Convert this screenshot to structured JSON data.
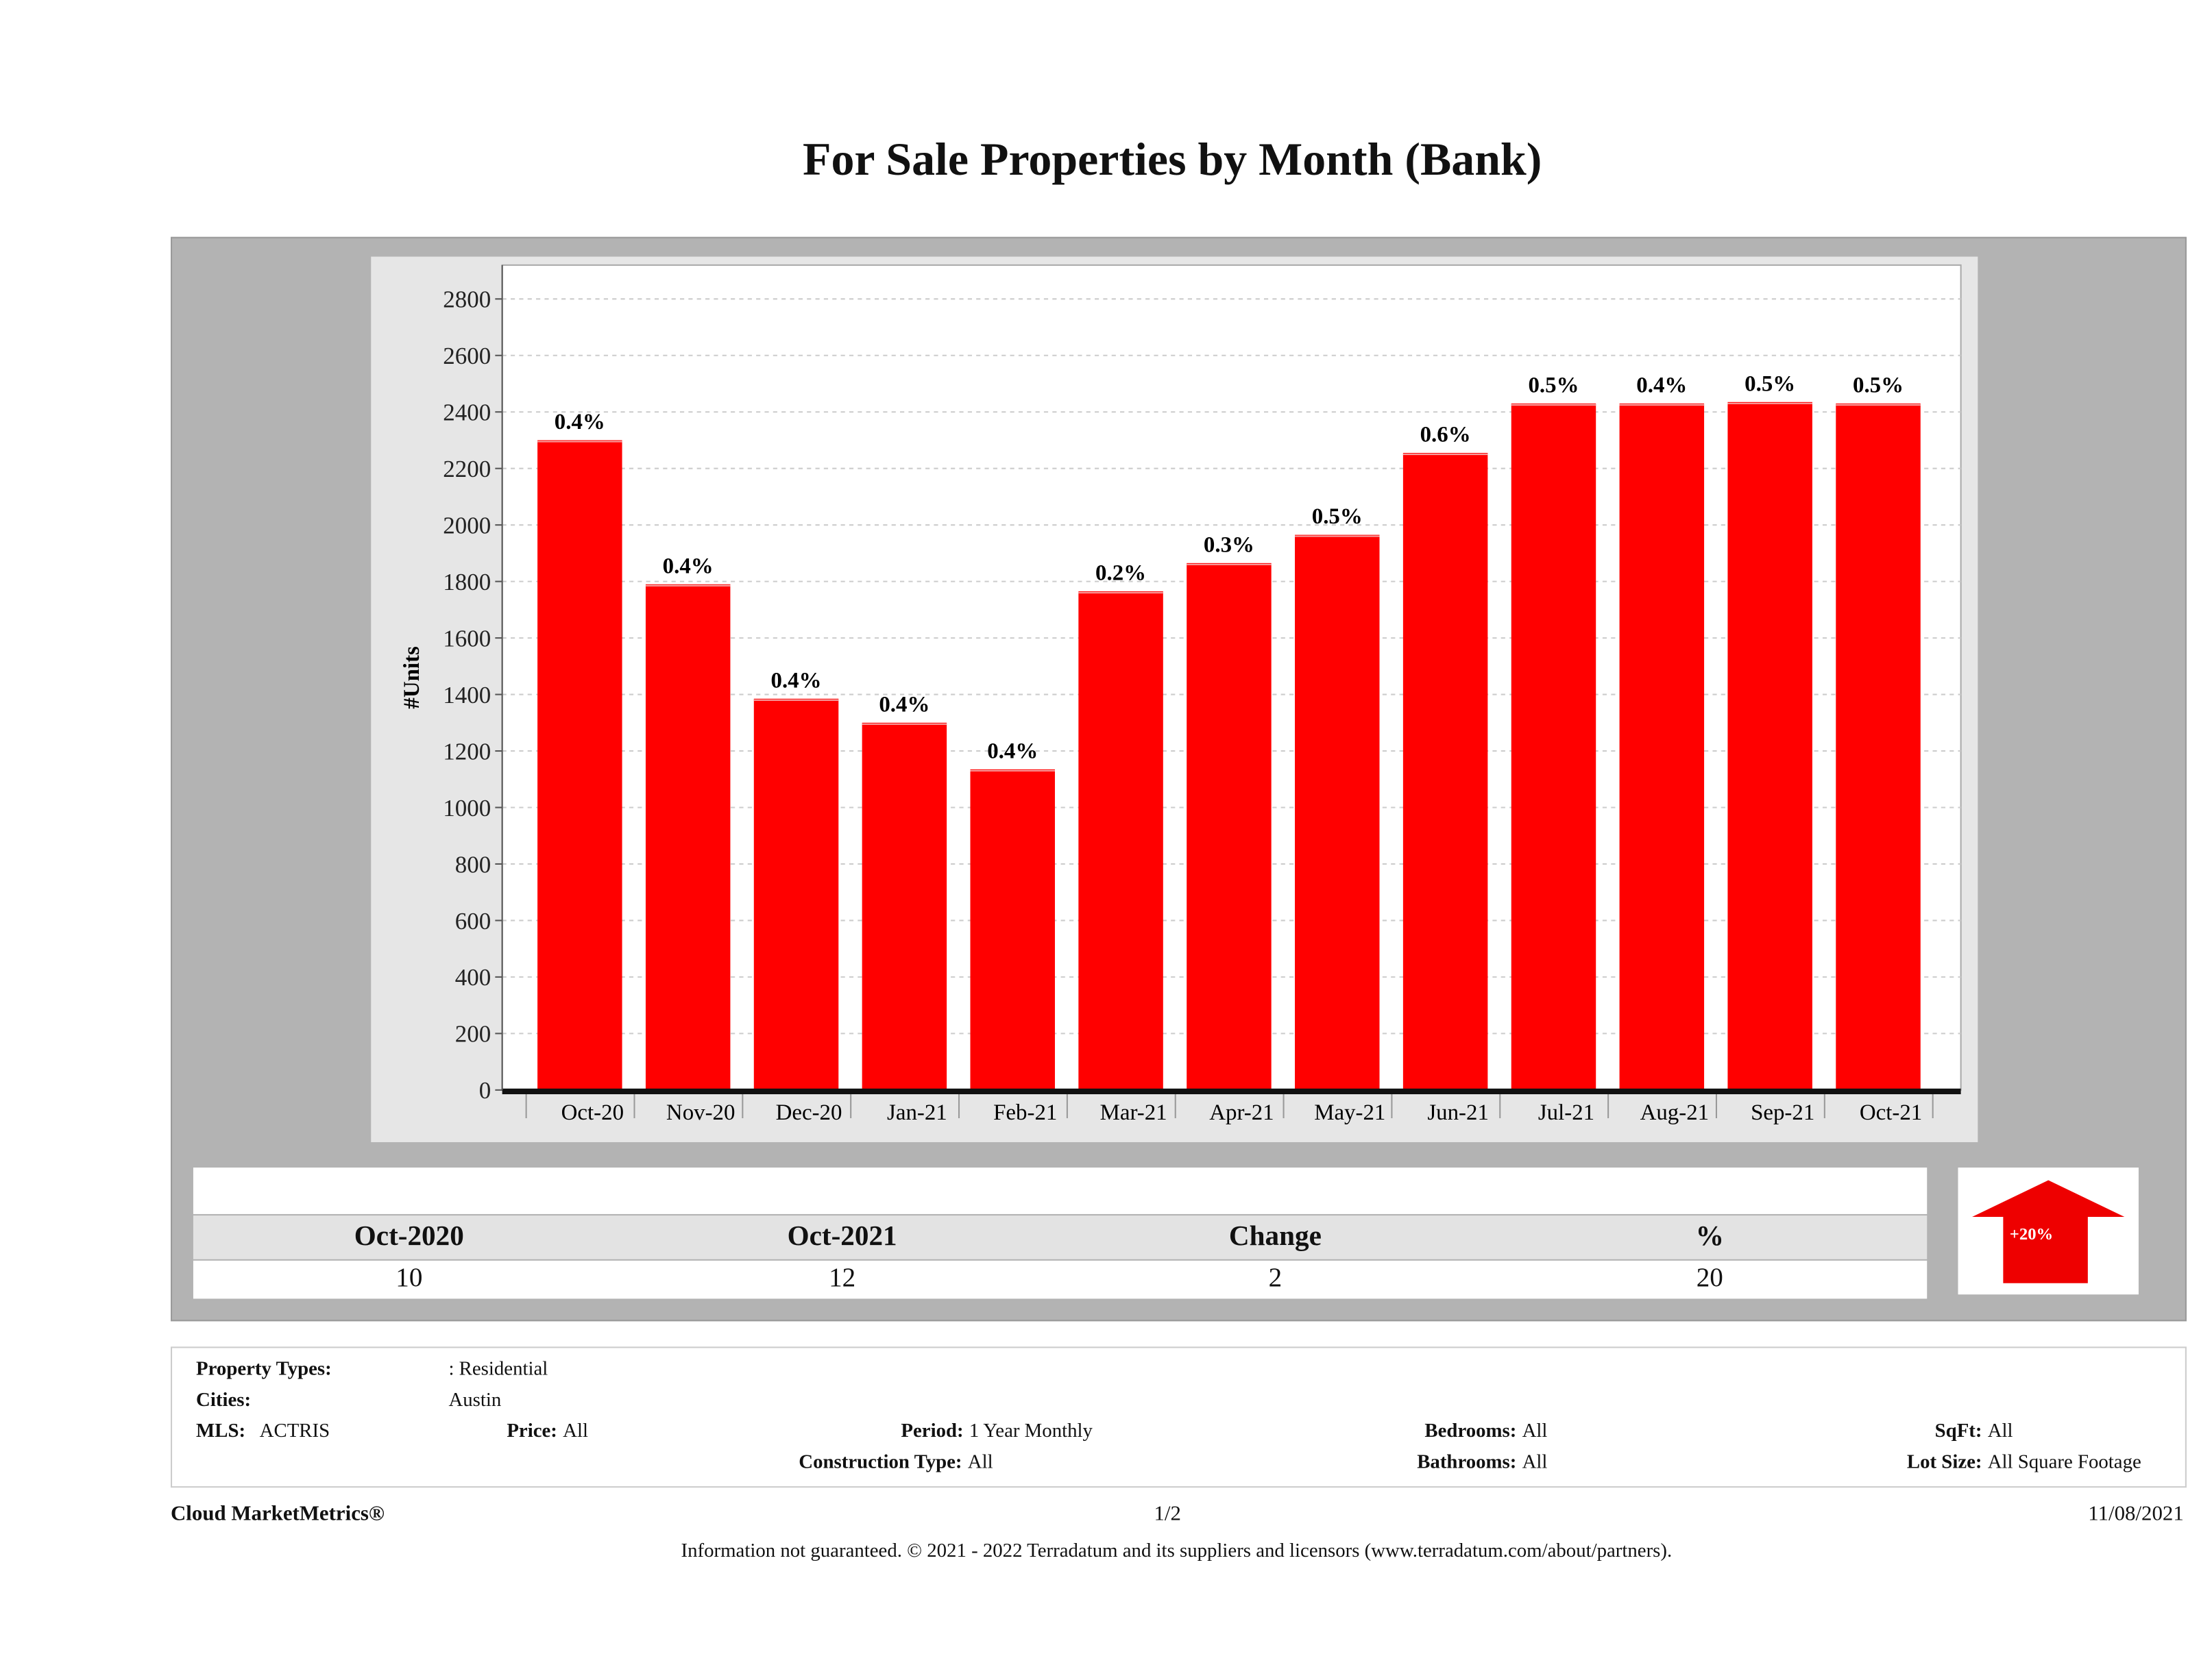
{
  "title": "For Sale Properties by Month (Bank)",
  "chart_data": {
    "type": "bar",
    "title": "For Sale Properties by Month (Bank)",
    "xlabel": "",
    "ylabel": "#Units",
    "ylim": [
      0,
      2900
    ],
    "yticks": [
      0,
      200,
      400,
      600,
      800,
      1000,
      1200,
      1400,
      1600,
      1800,
      2000,
      2200,
      2400,
      2600,
      2800
    ],
    "grid": true,
    "categories": [
      "Oct-20",
      "Nov-20",
      "Dec-20",
      "Jan-21",
      "Feb-21",
      "Mar-21",
      "Apr-21",
      "May-21",
      "Jun-21",
      "Jul-21",
      "Aug-21",
      "Sep-21",
      "Oct-21"
    ],
    "values": [
      2300,
      1790,
      1385,
      1300,
      1135,
      1765,
      1865,
      1965,
      2255,
      2430,
      2430,
      2435,
      2430
    ],
    "data_labels": [
      "0.4%",
      "0.4%",
      "0.4%",
      "0.4%",
      "0.4%",
      "0.2%",
      "0.3%",
      "0.5%",
      "0.6%",
      "0.5%",
      "0.4%",
      "0.5%",
      "0.5%"
    ],
    "bar_color": "#ff0000"
  },
  "summary": {
    "headers": [
      "Oct-2020",
      "Oct-2021",
      "Change",
      "%"
    ],
    "values": [
      "10",
      "12",
      "2",
      "20"
    ],
    "badge": "+20%",
    "arrow_color": "#ee0000"
  },
  "info": {
    "property_types_label": "Property Types:",
    "property_types_value": ": Residential",
    "cities_label": "Cities:",
    "cities_value": "Austin",
    "mls_label": "MLS:",
    "mls_value": "ACTRIS",
    "price_label": "Price:",
    "price_value": "All",
    "period_label": "Period:",
    "period_value": "1 Year Monthly",
    "bedrooms_label": "Bedrooms:",
    "bedrooms_value": "All",
    "sqft_label": "SqFt:",
    "sqft_value": "All",
    "construction_label": "Construction Type:",
    "construction_value": "All",
    "bathrooms_label": "Bathrooms:",
    "bathrooms_value": "All",
    "lot_label": "Lot Size:",
    "lot_value": "All Square Footage"
  },
  "footer": {
    "brand": "Cloud MarketMetrics®",
    "page": "1/2",
    "date": "11/08/2021",
    "disclaimer": "Information not guaranteed. © 2021 - 2022 Terradatum and its suppliers and licensors (www.terradatum.com/about/partners)."
  }
}
